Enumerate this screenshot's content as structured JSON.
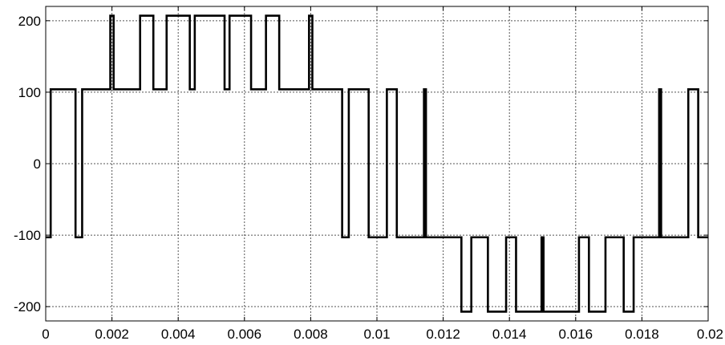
{
  "chart_data": {
    "type": "line",
    "title": "",
    "xlabel": "",
    "ylabel": "",
    "xlim": [
      0,
      0.02
    ],
    "ylim": [
      -220,
      220
    ],
    "grid": true,
    "x_ticks": [
      0,
      0.002,
      0.004,
      0.006,
      0.008,
      0.01,
      0.012,
      0.014,
      0.016,
      0.018,
      0.02
    ],
    "x_tick_labels": [
      "0",
      "0.002",
      "0.004",
      "0.006",
      "0.008",
      "0.01",
      "0.012",
      "0.014",
      "0.016",
      "0.018",
      "0.02"
    ],
    "y_ticks": [
      200,
      100,
      0,
      -100,
      -200
    ],
    "y_tick_labels": [
      "200",
      "100",
      "0",
      "-100",
      "-200"
    ],
    "series": [
      {
        "color": "#000000",
        "x": [
          0,
          0.00015,
          0.00015,
          0.0009,
          0.0009,
          0.0011,
          0.0011,
          0.00195,
          0.00195,
          0.00205,
          0.00205,
          0.00285,
          0.00285,
          0.00325,
          0.00325,
          0.00365,
          0.00365,
          0.00435,
          0.00435,
          0.0045,
          0.0045,
          0.0054,
          0.0054,
          0.00555,
          0.00555,
          0.0062,
          0.0062,
          0.00665,
          0.00665,
          0.00705,
          0.00705,
          0.00795,
          0.00795,
          0.00805,
          0.00805,
          0.00895,
          0.00895,
          0.00915,
          0.00915,
          0.00975,
          0.00975,
          0.0103,
          0.0103,
          0.0106,
          0.0106,
          0.01142,
          0.01142,
          0.01148,
          0.01148,
          0.01255,
          0.01255,
          0.01285,
          0.01285,
          0.01335,
          0.01335,
          0.0139,
          0.0139,
          0.0142,
          0.0142,
          0.01497,
          0.01497,
          0.01503,
          0.01503,
          0.0161,
          0.0161,
          0.0164,
          0.0164,
          0.0169,
          0.0169,
          0.01745,
          0.01745,
          0.01775,
          0.01775,
          0.01852,
          0.01852,
          0.01858,
          0.01858,
          0.0194,
          0.0194,
          0.0197,
          0.0197,
          0.02
        ],
        "y": [
          -103,
          -103,
          104,
          104,
          -103,
          -103,
          104,
          104,
          207,
          207,
          104,
          104,
          207,
          207,
          104,
          104,
          207,
          207,
          104,
          104,
          207,
          207,
          104,
          104,
          207,
          207,
          104,
          104,
          207,
          207,
          104,
          104,
          207,
          207,
          104,
          104,
          -103,
          -103,
          104,
          104,
          -103,
          -103,
          104,
          104,
          -103,
          -103,
          104,
          104,
          -103,
          -103,
          -207,
          -207,
          -103,
          -103,
          -207,
          -207,
          -103,
          -103,
          -207,
          -207,
          -103,
          -103,
          -207,
          -207,
          -103,
          -103,
          -207,
          -207,
          -103,
          -103,
          -207,
          -207,
          -103,
          -103,
          104,
          104,
          -103,
          -103,
          104,
          104,
          -103,
          -103
        ]
      }
    ]
  }
}
